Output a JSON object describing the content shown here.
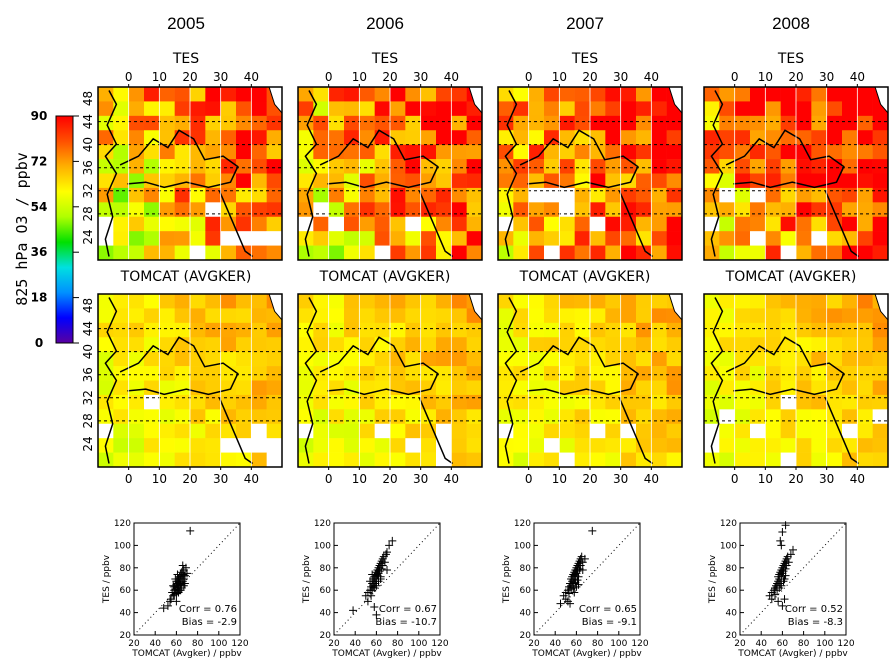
{
  "figure": {
    "years": [
      "2005",
      "2006",
      "2007",
      "2008"
    ],
    "row_titles": [
      "TES",
      "TOMCAT (AVGKER)"
    ],
    "colorbar": {
      "title": "825 hPa O3 / ppbv",
      "ticks": [
        0,
        18,
        36,
        54,
        72,
        90
      ],
      "range": [
        0,
        90
      ],
      "colors": [
        "#5a00a0",
        "#0000ff",
        "#0090ff",
        "#00e0e0",
        "#00e000",
        "#b0ff00",
        "#ffff00",
        "#ffb000",
        "#ff5000",
        "#ff0000"
      ]
    },
    "map": {
      "lon_ticks": [
        0,
        10,
        20,
        30,
        40
      ],
      "lat_ticks": [
        24,
        28,
        32,
        36,
        40,
        44,
        48
      ],
      "lon_range": [
        -10,
        50
      ],
      "lat_range": [
        20,
        50
      ],
      "grid_lines": [
        28,
        32,
        36,
        40,
        44
      ]
    },
    "scatter_axes": {
      "xlabel": "TOMCAT (Avgker) / ppbv",
      "ylabel": "TES / ppbv",
      "xticks": [
        20,
        40,
        60,
        80,
        100,
        120
      ],
      "yticks": [
        20,
        40,
        60,
        80,
        100,
        120
      ],
      "xlim": [
        20,
        120
      ],
      "ylim": [
        20,
        120
      ]
    }
  },
  "chart_data": [
    {
      "type": "scatter",
      "panel": "2005",
      "title": "2005",
      "xlabel": "TOMCAT (Avgker) / ppbv",
      "ylabel": "TES / ppbv",
      "xlim": [
        20,
        120
      ],
      "ylim": [
        20,
        120
      ],
      "corr_label": "Corr = 0.76",
      "bias_label": "Bias = -2.9",
      "corr": 0.76,
      "bias": -2.9,
      "points": [
        [
          52,
          46
        ],
        [
          55,
          52
        ],
        [
          56,
          58
        ],
        [
          57,
          55
        ],
        [
          58,
          60
        ],
        [
          58,
          63
        ],
        [
          59,
          61
        ],
        [
          60,
          65
        ],
        [
          60,
          57
        ],
        [
          61,
          66
        ],
        [
          61,
          62
        ],
        [
          62,
          64
        ],
        [
          62,
          68
        ],
        [
          63,
          60
        ],
        [
          63,
          67
        ],
        [
          64,
          70
        ],
        [
          64,
          65
        ],
        [
          65,
          72
        ],
        [
          65,
          62
        ],
        [
          66,
          68
        ],
        [
          66,
          74
        ],
        [
          67,
          70
        ],
        [
          67,
          78
        ],
        [
          68,
          73
        ],
        [
          68,
          66
        ],
        [
          69,
          80
        ],
        [
          70,
          75
        ],
        [
          58,
          56
        ],
        [
          60,
          50
        ],
        [
          62,
          58
        ],
        [
          64,
          74
        ],
        [
          66,
          82
        ],
        [
          63,
          72
        ],
        [
          59,
          70
        ],
        [
          61,
          74
        ],
        [
          65,
          76
        ],
        [
          57,
          64
        ],
        [
          60,
          68
        ],
        [
          62,
          70
        ],
        [
          64,
          60
        ],
        [
          67,
          64
        ],
        [
          48,
          44
        ],
        [
          54,
          50
        ],
        [
          73,
          113
        ]
      ]
    },
    {
      "type": "scatter",
      "panel": "2006",
      "title": "2006",
      "xlabel": "TOMCAT (Avgker) / ppbv",
      "ylabel": "TES / ppbv",
      "xlim": [
        20,
        120
      ],
      "ylim": [
        20,
        120
      ],
      "corr_label": "Corr = 0.67",
      "bias_label": "Bias = -10.7",
      "corr": 0.67,
      "bias": -10.7,
      "points": [
        [
          38,
          42
        ],
        [
          50,
          55
        ],
        [
          52,
          58
        ],
        [
          54,
          60
        ],
        [
          55,
          63
        ],
        [
          56,
          66
        ],
        [
          57,
          64
        ],
        [
          57,
          70
        ],
        [
          58,
          68
        ],
        [
          58,
          72
        ],
        [
          59,
          74
        ],
        [
          59,
          66
        ],
        [
          60,
          76
        ],
        [
          60,
          70
        ],
        [
          61,
          78
        ],
        [
          61,
          73
        ],
        [
          62,
          80
        ],
        [
          62,
          75
        ],
        [
          63,
          82
        ],
        [
          63,
          77
        ],
        [
          64,
          84
        ],
        [
          64,
          72
        ],
        [
          65,
          86
        ],
        [
          65,
          79
        ],
        [
          66,
          88
        ],
        [
          66,
          82
        ],
        [
          67,
          90
        ],
        [
          68,
          85
        ],
        [
          69,
          92
        ],
        [
          70,
          94
        ],
        [
          56,
          60
        ],
        [
          58,
          62
        ],
        [
          60,
          64
        ],
        [
          62,
          68
        ],
        [
          64,
          70
        ],
        [
          52,
          50
        ],
        [
          55,
          55
        ],
        [
          58,
          45
        ],
        [
          60,
          38
        ],
        [
          70,
          78
        ],
        [
          72,
          100
        ],
        [
          75,
          104
        ],
        [
          54,
          68
        ],
        [
          56,
          74
        ]
      ]
    },
    {
      "type": "scatter",
      "panel": "2007",
      "title": "2007",
      "xlabel": "TOMCAT (Avgker) / ppbv",
      "ylabel": "TES / ppbv",
      "xlim": [
        20,
        120
      ],
      "ylim": [
        20,
        120
      ],
      "corr_label": "Corr = 0.65",
      "bias_label": "Bias = -9.1",
      "corr": 0.65,
      "bias": -9.1,
      "points": [
        [
          45,
          48
        ],
        [
          48,
          55
        ],
        [
          50,
          58
        ],
        [
          52,
          60
        ],
        [
          53,
          63
        ],
        [
          54,
          66
        ],
        [
          55,
          64
        ],
        [
          55,
          70
        ],
        [
          56,
          68
        ],
        [
          56,
          72
        ],
        [
          57,
          74
        ],
        [
          57,
          66
        ],
        [
          58,
          76
        ],
        [
          58,
          70
        ],
        [
          59,
          78
        ],
        [
          59,
          73
        ],
        [
          60,
          80
        ],
        [
          60,
          75
        ],
        [
          61,
          82
        ],
        [
          61,
          77
        ],
        [
          62,
          84
        ],
        [
          62,
          72
        ],
        [
          63,
          86
        ],
        [
          63,
          79
        ],
        [
          64,
          88
        ],
        [
          64,
          82
        ],
        [
          65,
          90
        ],
        [
          66,
          85
        ],
        [
          53,
          57
        ],
        [
          55,
          61
        ],
        [
          57,
          62
        ],
        [
          59,
          67
        ],
        [
          61,
          69
        ],
        [
          50,
          52
        ],
        [
          52,
          50
        ],
        [
          54,
          48
        ],
        [
          58,
          58
        ],
        [
          60,
          63
        ],
        [
          62,
          65
        ],
        [
          66,
          78
        ],
        [
          68,
          88
        ],
        [
          75,
          113
        ]
      ]
    },
    {
      "type": "scatter",
      "panel": "2008",
      "title": "2008",
      "xlabel": "TOMCAT (Avgker) / ppbv",
      "ylabel": "TES / ppbv",
      "xlim": [
        20,
        120
      ],
      "ylim": [
        20,
        120
      ],
      "corr_label": "Corr = 0.52",
      "bias_label": "Bias = -8.3",
      "corr": 0.52,
      "bias": -8.3,
      "points": [
        [
          48,
          55
        ],
        [
          50,
          58
        ],
        [
          52,
          60
        ],
        [
          53,
          62
        ],
        [
          54,
          64
        ],
        [
          55,
          66
        ],
        [
          56,
          68
        ],
        [
          56,
          72
        ],
        [
          57,
          70
        ],
        [
          57,
          74
        ],
        [
          58,
          76
        ],
        [
          58,
          66
        ],
        [
          59,
          78
        ],
        [
          59,
          72
        ],
        [
          60,
          80
        ],
        [
          60,
          75
        ],
        [
          61,
          82
        ],
        [
          61,
          77
        ],
        [
          62,
          84
        ],
        [
          62,
          70
        ],
        [
          63,
          86
        ],
        [
          63,
          79
        ],
        [
          64,
          88
        ],
        [
          64,
          82
        ],
        [
          65,
          90
        ],
        [
          66,
          85
        ],
        [
          55,
          60
        ],
        [
          57,
          62
        ],
        [
          59,
          64
        ],
        [
          61,
          68
        ],
        [
          63,
          73
        ],
        [
          50,
          52
        ],
        [
          53,
          56
        ],
        [
          56,
          50
        ],
        [
          60,
          46
        ],
        [
          62,
          52
        ],
        [
          68,
          92
        ],
        [
          70,
          96
        ],
        [
          58,
          104
        ],
        [
          60,
          112
        ],
        [
          63,
          118
        ],
        [
          59,
          100
        ]
      ]
    }
  ]
}
